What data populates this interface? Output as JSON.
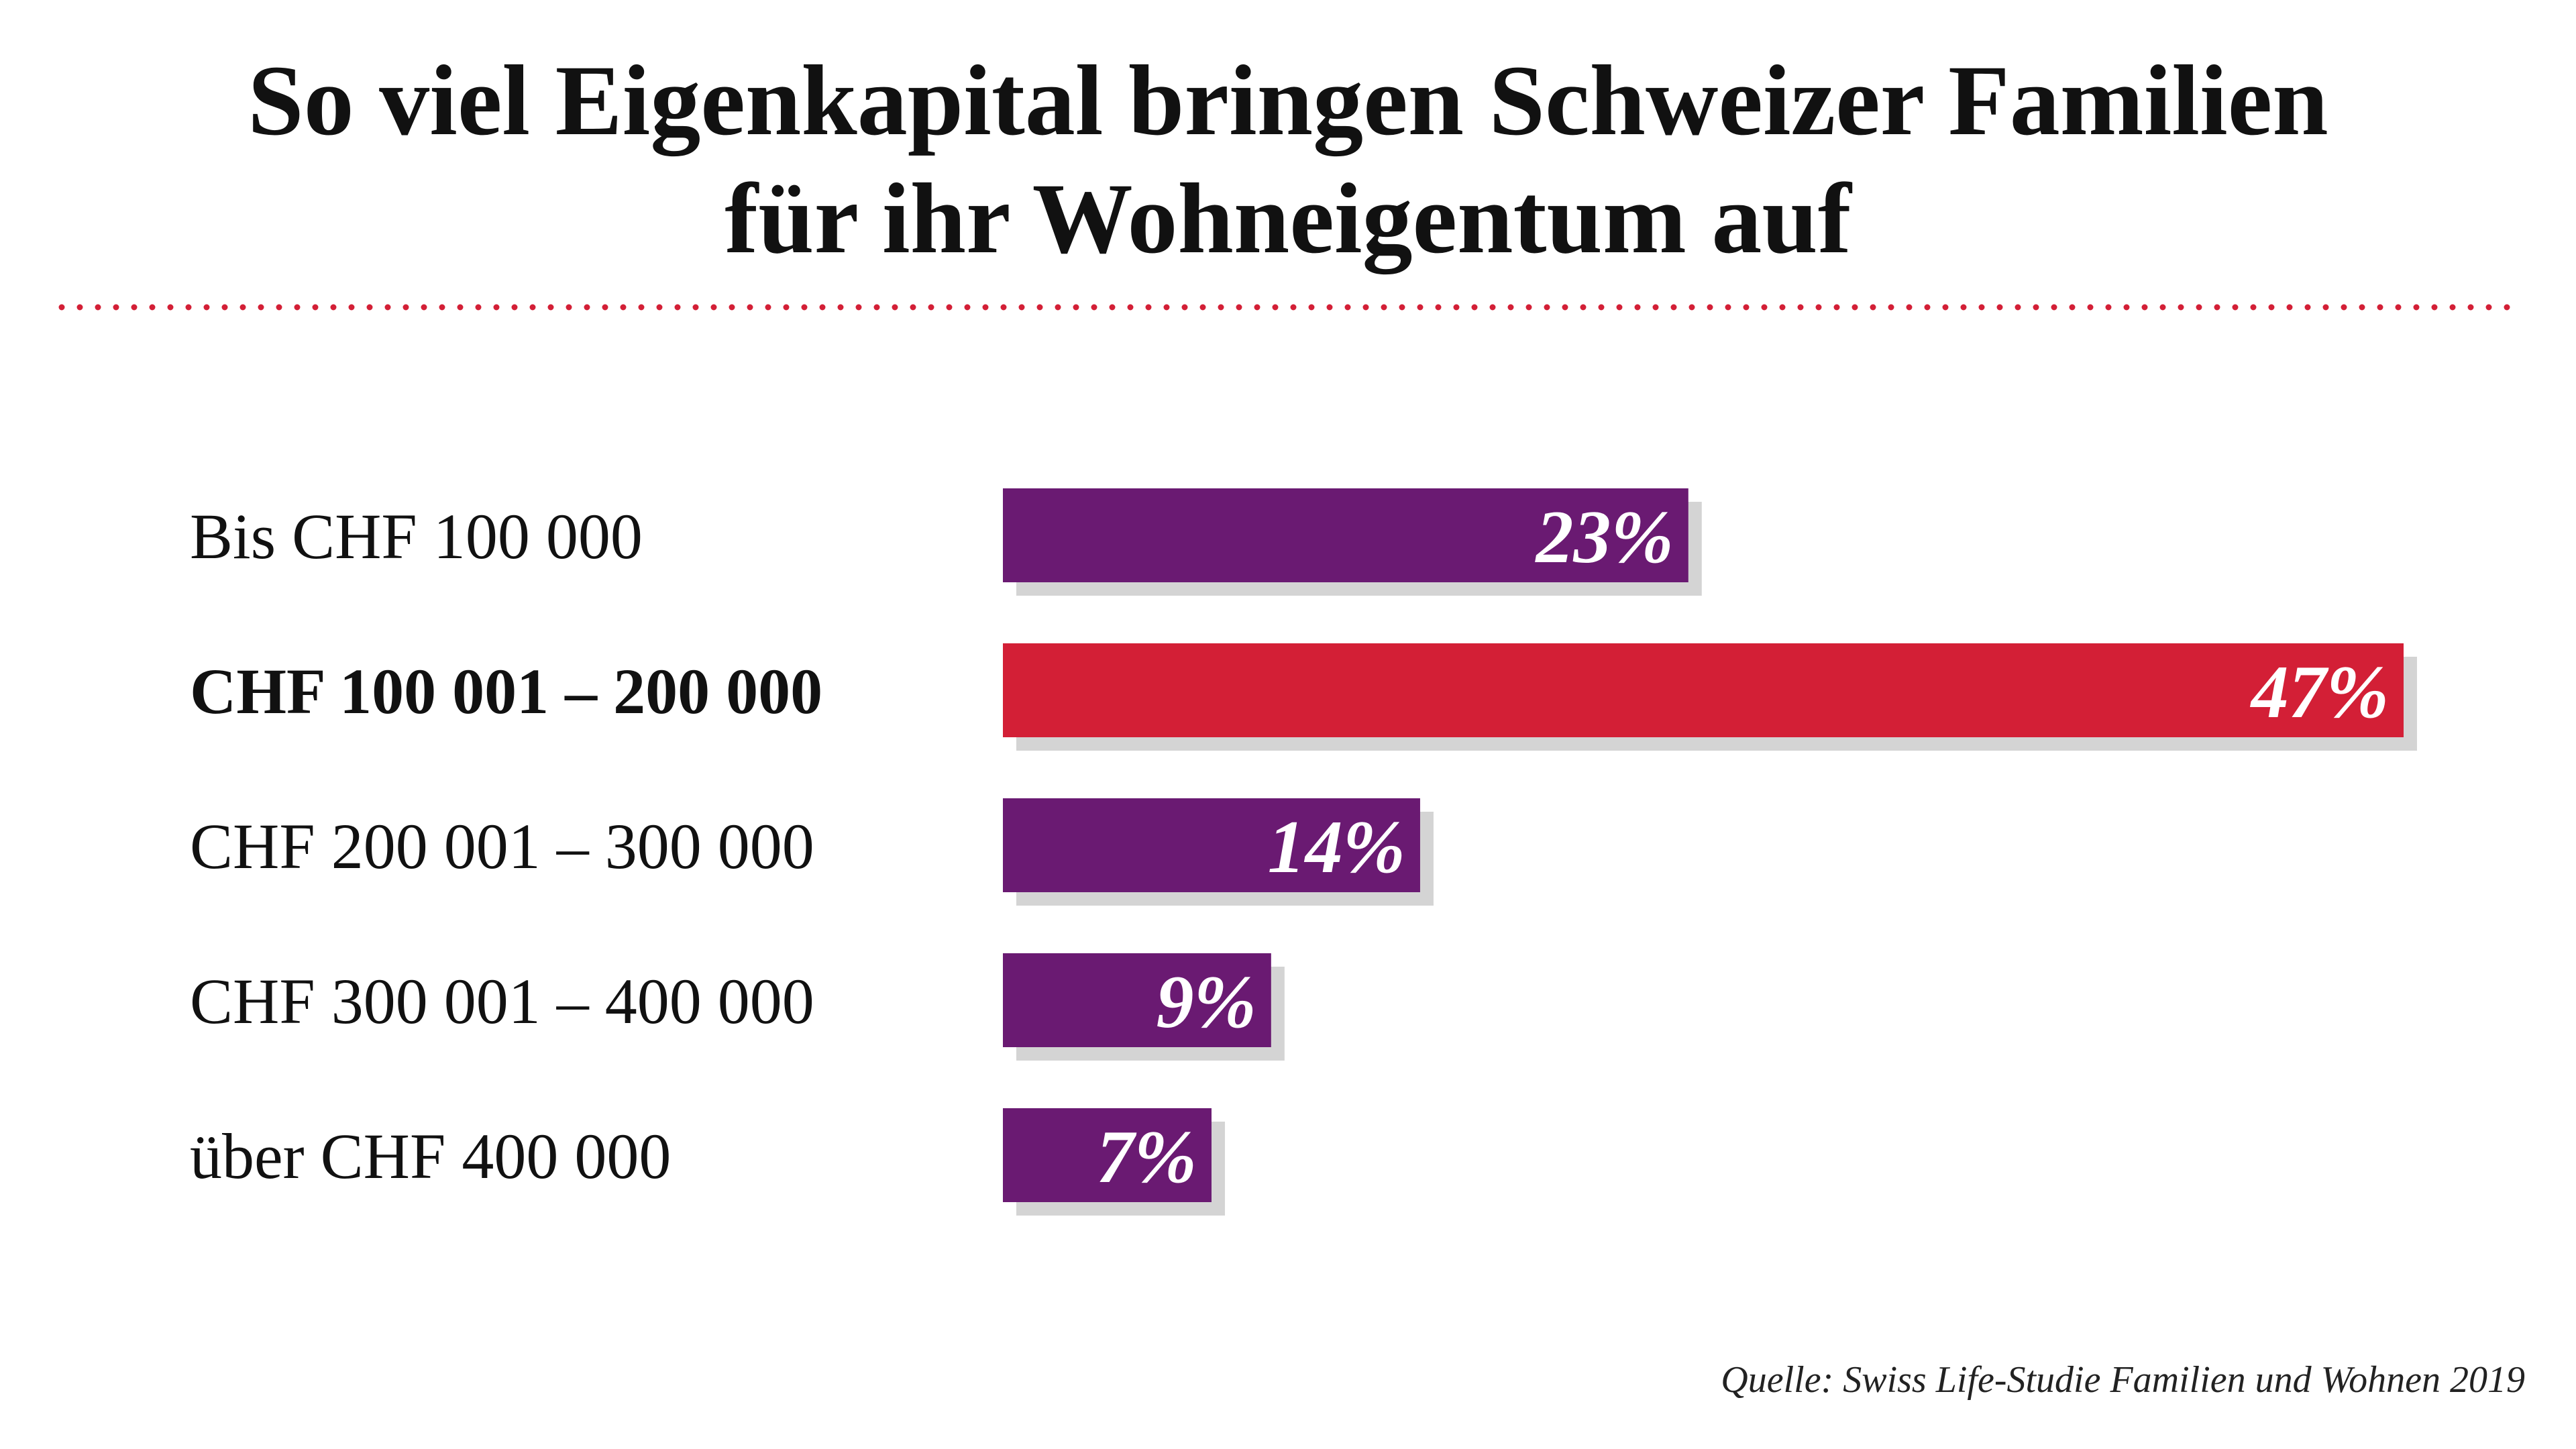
{
  "chart_data": {
    "type": "bar",
    "orientation": "horizontal",
    "title_lines": [
      "So viel Eigenkapital bringen Schweizer Familien",
      "für ihr Wohneigentum auf"
    ],
    "categories": [
      "Bis CHF 100 000",
      "CHF 100 001 – 200 000",
      "CHF 200 001 – 300 000",
      "CHF 300 001 – 400 000",
      "über CHF 400 000"
    ],
    "values": [
      23,
      47,
      14,
      9,
      7
    ],
    "value_labels": [
      "23%",
      "47%",
      "14%",
      "9%",
      "7%"
    ],
    "highlight_index": 1,
    "unit": "%",
    "xlim": [
      0,
      47
    ],
    "source": "Quelle: Swiss Life-Studie Familien und Wohnen 2019"
  },
  "colors": {
    "bar": "#6a1a72",
    "highlight": "#d31f36",
    "shadow": "#d4d4d4",
    "divider": "#d31f36",
    "text": "#111111"
  }
}
